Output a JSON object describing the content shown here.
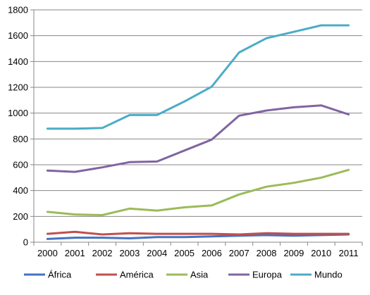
{
  "chart_data": {
    "type": "line",
    "title": "",
    "xlabel": "",
    "ylabel": "",
    "x": [
      "2000",
      "2001",
      "2002",
      "2003",
      "2004",
      "2005",
      "2006",
      "2007",
      "2008",
      "2009",
      "2010",
      "2011"
    ],
    "ylim": [
      0,
      1800
    ],
    "yticks": [
      0,
      200,
      400,
      600,
      800,
      1000,
      1200,
      1400,
      1600,
      1800
    ],
    "grid": true,
    "legend_position": "bottom",
    "series": [
      {
        "name": "África",
        "color": "#4472C4",
        "values": [
          25,
          35,
          35,
          30,
          40,
          40,
          45,
          50,
          55,
          50,
          55,
          60
        ]
      },
      {
        "name": "América",
        "color": "#C0504D",
        "values": [
          65,
          80,
          60,
          70,
          65,
          65,
          65,
          60,
          70,
          65,
          65,
          65
        ]
      },
      {
        "name": "Asia",
        "color": "#9BBB59",
        "values": [
          235,
          215,
          210,
          260,
          245,
          270,
          285,
          370,
          430,
          460,
          500,
          560
        ]
      },
      {
        "name": "Europa",
        "color": "#8064A2",
        "values": [
          555,
          545,
          580,
          620,
          625,
          710,
          795,
          980,
          1020,
          1045,
          1060,
          990
        ]
      },
      {
        "name": "Mundo",
        "color": "#4BACC6",
        "values": [
          880,
          880,
          885,
          985,
          985,
          1090,
          1205,
          1470,
          1580,
          1630,
          1680,
          1680
        ]
      }
    ]
  }
}
